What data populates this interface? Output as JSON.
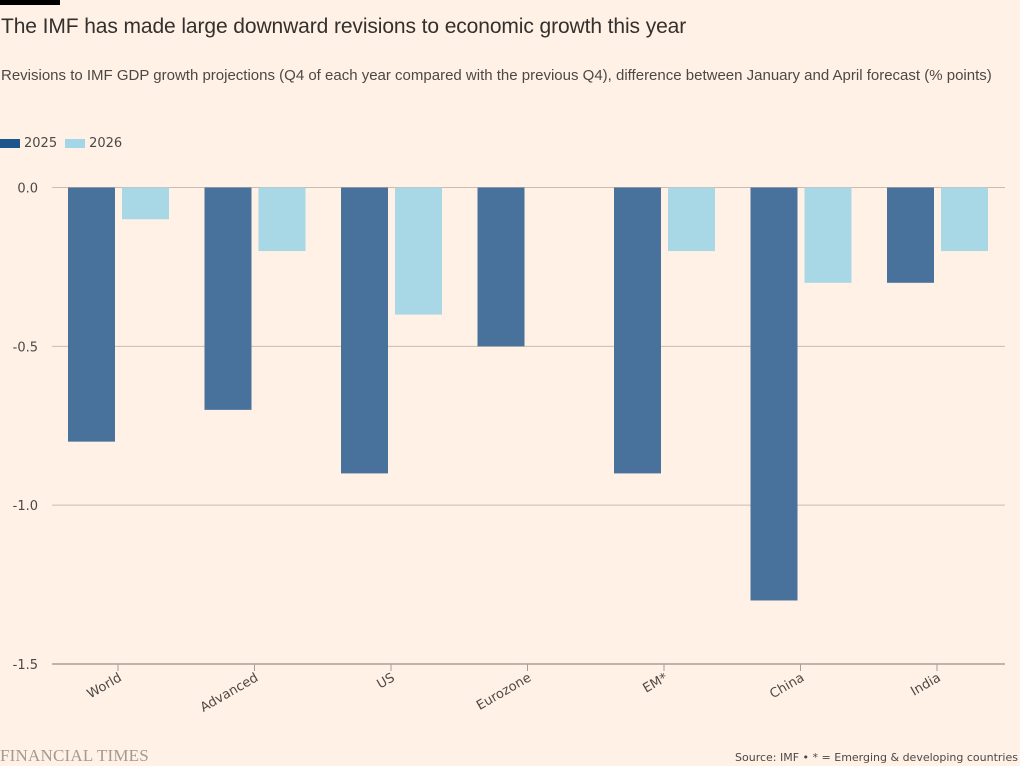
{
  "header": {
    "title": "The IMF has made large downward revisions to economic growth this year",
    "subtitle": "Revisions to IMF GDP growth projections (Q4 of each year compared with the previous Q4), difference between January and April forecast (% points)"
  },
  "legend": [
    {
      "label": "2025",
      "color": "#1e558c"
    },
    {
      "label": "2026",
      "color": "#a5d6e8"
    }
  ],
  "footer": {
    "logo": "FINANCIAL TIMES",
    "source": "Source: IMF • * = Emerging & developing countries"
  },
  "colors": {
    "background": "#fff1e5",
    "bar_2025": "#48729b",
    "bar_2026": "#a8d7e6",
    "grid": "#c9bdb1",
    "text": "#4d4845"
  },
  "chart_data": {
    "type": "bar",
    "title": "The IMF has made large downward revisions to economic growth this year",
    "subtitle": "Revisions to IMF GDP growth projections (Q4 of each year compared with the previous Q4), difference between January and April forecast (% points)",
    "xlabel": "",
    "ylabel": "",
    "categories": [
      "World",
      "Advanced",
      "US",
      "Eurozone",
      "EM*",
      "China",
      "India"
    ],
    "series": [
      {
        "name": "2025",
        "values": [
          -0.8,
          -0.7,
          -0.9,
          -0.5,
          -0.9,
          -1.3,
          -0.3
        ]
      },
      {
        "name": "2026",
        "values": [
          -0.1,
          -0.2,
          -0.4,
          null,
          -0.2,
          -0.3,
          -0.2
        ]
      }
    ],
    "ylim": [
      -1.5,
      0.0
    ],
    "yticks": [
      0.0,
      -0.5,
      -1.0,
      -1.5
    ],
    "ytick_labels": [
      "0.0",
      "-0.5",
      "-1.0",
      "-1.5"
    ],
    "grid": true,
    "legend_position": "top-left",
    "source": "Source: IMF • * = Emerging & developing countries"
  }
}
